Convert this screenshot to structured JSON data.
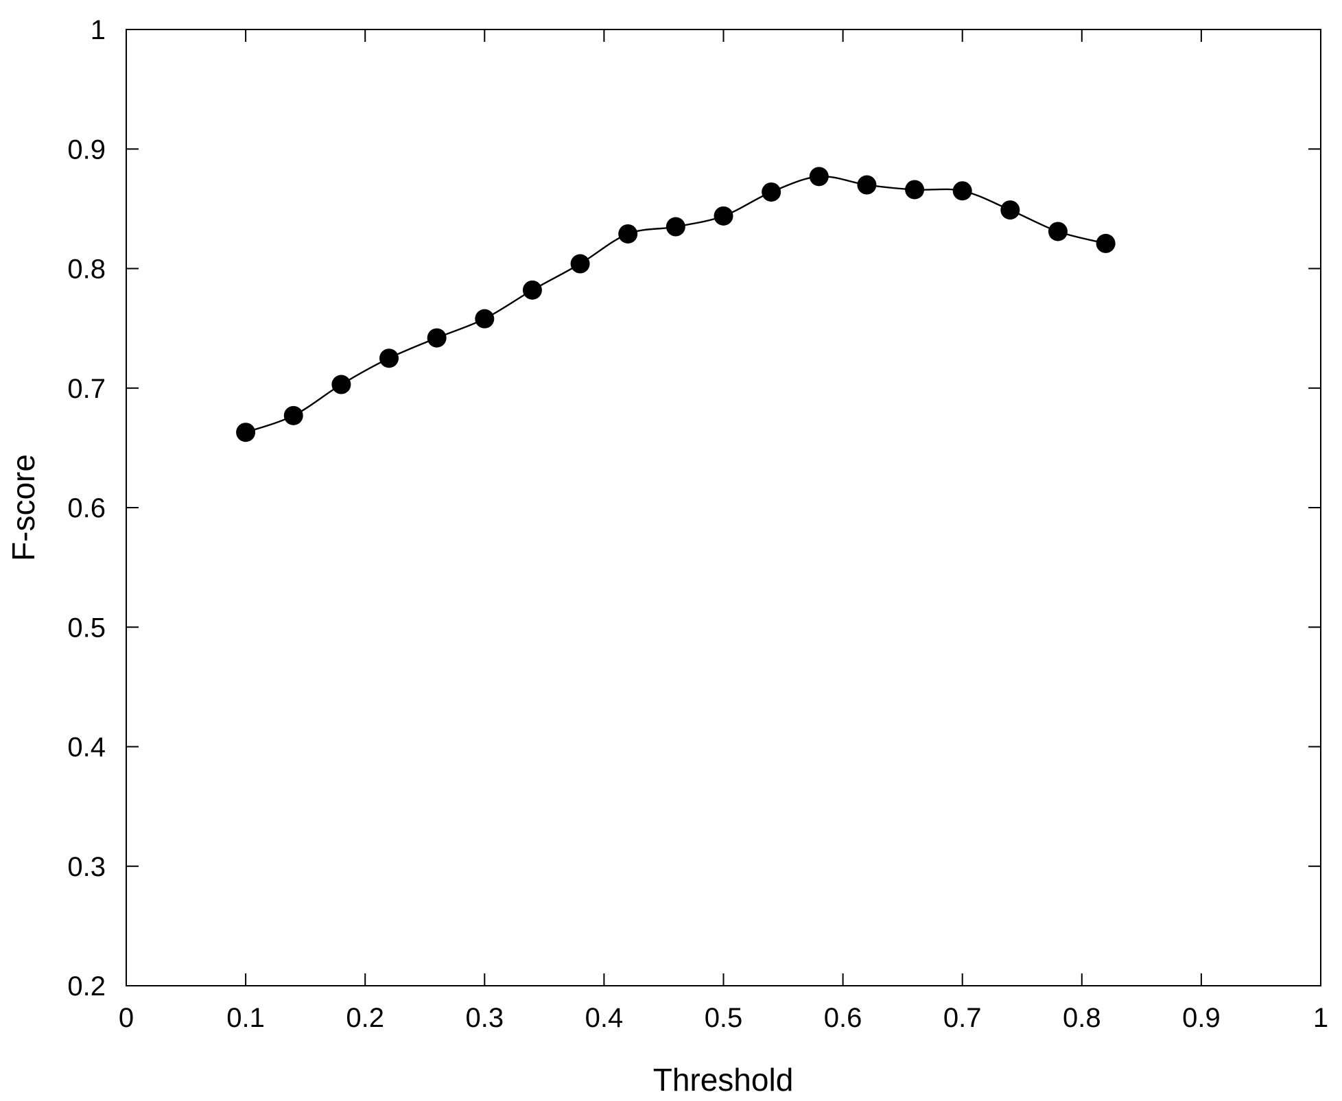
{
  "chart_data": {
    "type": "line",
    "title": "",
    "xlabel": "Threshold",
    "ylabel": "F-score",
    "xlim": [
      0,
      1
    ],
    "ylim": [
      0.2,
      1
    ],
    "grid": false,
    "x_ticks": [
      0,
      0.1,
      0.2,
      0.3,
      0.4,
      0.5,
      0.6,
      0.7,
      0.8,
      0.9,
      1
    ],
    "x_tick_labels": [
      "0",
      "0.1",
      "0.2",
      "0.3",
      "0.4",
      "0.5",
      "0.6",
      "0.7",
      "0.8",
      "0.9",
      "1"
    ],
    "y_ticks": [
      0.2,
      0.3,
      0.4,
      0.5,
      0.6,
      0.7,
      0.8,
      0.9,
      1
    ],
    "y_tick_labels": [
      "0.2",
      "0.3",
      "0.4",
      "0.5",
      "0.6",
      "0.7",
      "0.8",
      "0.9",
      "1"
    ],
    "series": [
      {
        "x": [
          0.1,
          0.14,
          0.18,
          0.22,
          0.26,
          0.3,
          0.34,
          0.38,
          0.42,
          0.46,
          0.5,
          0.54,
          0.58,
          0.62,
          0.66,
          0.7,
          0.74,
          0.78,
          0.82
        ],
        "y": [
          0.663,
          0.677,
          0.703,
          0.725,
          0.742,
          0.758,
          0.782,
          0.804,
          0.829,
          0.835,
          0.844,
          0.864,
          0.877,
          0.87,
          0.866,
          0.865,
          0.849,
          0.831,
          0.821
        ],
        "color": "#000000",
        "marker": "filled-circle"
      }
    ]
  }
}
